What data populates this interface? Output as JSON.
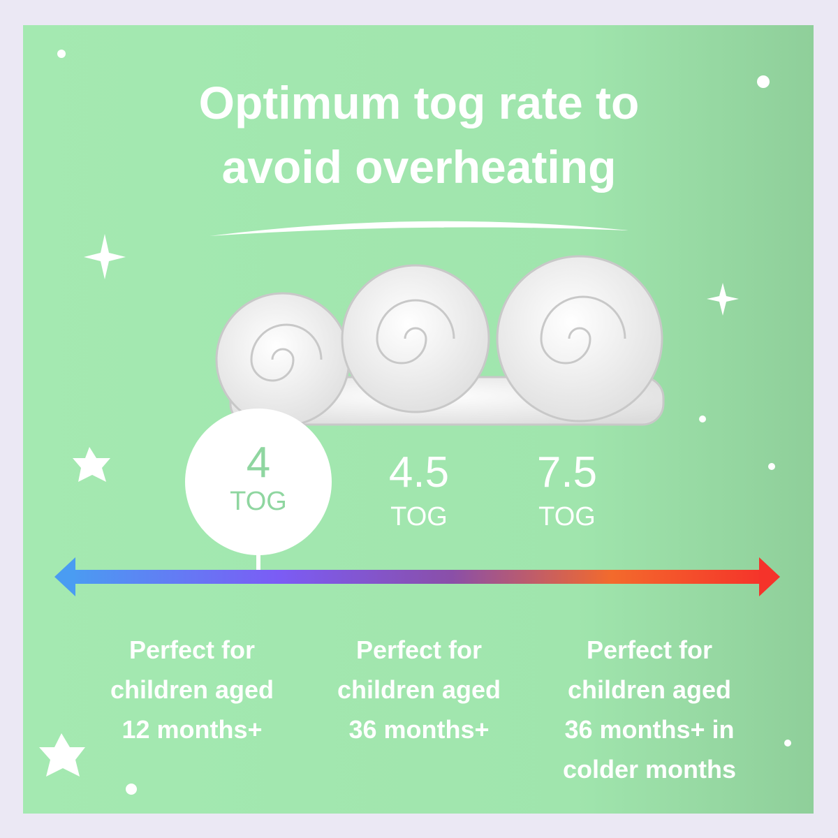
{
  "title": {
    "lines": [
      "Optimum tog rate to",
      "avoid overheating"
    ]
  },
  "tog_options": [
    {
      "value": 4,
      "unit": "TOG",
      "description": [
        "Perfect for",
        "children aged",
        "12 months+"
      ]
    },
    {
      "value": 4.5,
      "unit": "TOG",
      "description": [
        "Perfect for",
        "children aged",
        "36 months+"
      ]
    },
    {
      "value": 7.5,
      "unit": "TOG",
      "description": [
        "Perfect for",
        "children aged",
        "36 months+ in",
        "colder months"
      ]
    }
  ]
}
